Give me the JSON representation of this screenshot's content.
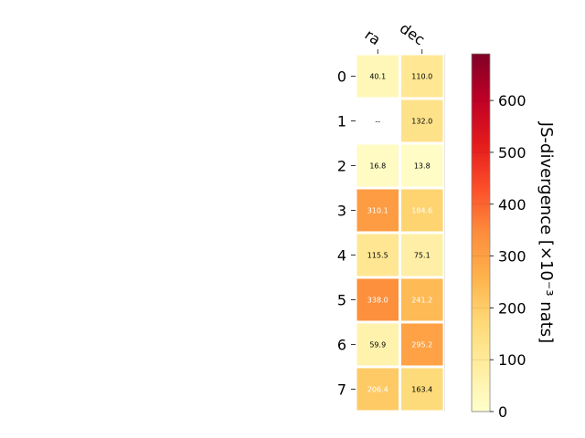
{
  "chart_data": {
    "type": "heatmap",
    "columns": [
      "ra",
      "dec"
    ],
    "rows": [
      "0",
      "1",
      "2",
      "3",
      "4",
      "5",
      "6",
      "7"
    ],
    "values": [
      [
        40.1,
        110.0
      ],
      [
        null,
        132.0
      ],
      [
        16.8,
        13.8
      ],
      [
        310.1,
        184.6
      ],
      [
        115.5,
        75.1
      ],
      [
        338.0,
        241.2
      ],
      [
        59.9,
        295.2
      ],
      [
        206.4,
        163.4
      ]
    ],
    "cell_labels": [
      [
        "40.1",
        "110.0"
      ],
      [
        "--",
        "132.0"
      ],
      [
        "16.8",
        "13.8"
      ],
      [
        "310.1",
        "184.6"
      ],
      [
        "115.5",
        "75.1"
      ],
      [
        "338.0",
        "241.2"
      ],
      [
        "59.9",
        "295.2"
      ],
      [
        "206.4",
        "163.4"
      ]
    ],
    "colormap": "YlOrRd",
    "colorbar": {
      "label": "JS-divergence [×10⁻³ nats]",
      "range": [
        0,
        690
      ],
      "ticks": [
        "0",
        "100",
        "200",
        "300",
        "400",
        "500",
        "600"
      ],
      "tick_values": [
        0,
        100,
        200,
        300,
        400,
        500,
        600
      ]
    },
    "grid": false,
    "legend": "right"
  }
}
